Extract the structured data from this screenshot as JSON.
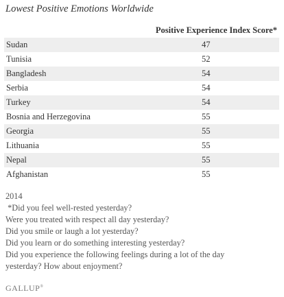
{
  "title": "Lowest Positive Emotions Worldwide",
  "column_header": "Positive Experience Index Score*",
  "rows": [
    {
      "country": "Sudan",
      "score": "47"
    },
    {
      "country": "Tunisia",
      "score": "52"
    },
    {
      "country": "Bangladesh",
      "score": "54"
    },
    {
      "country": "Serbia",
      "score": "54"
    },
    {
      "country": "Turkey",
      "score": "54"
    },
    {
      "country": "Bosnia and Herzegovina",
      "score": "55"
    },
    {
      "country": "Georgia",
      "score": "55"
    },
    {
      "country": "Lithuania",
      "score": "55"
    },
    {
      "country": "Nepal",
      "score": "55"
    },
    {
      "country": "Afghanistan",
      "score": "55"
    }
  ],
  "notes": [
    "2014",
    " *Did you feel well-rested yesterday?",
    "Were you treated with respect all day yesterday?",
    "Did you smile or laugh a lot yesterday?",
    "Did you learn or do something interesting yesterday?",
    "Did you experience the following feelings during a lot of the day",
    "yesterday? How about enjoyment?"
  ],
  "logo": "GALLUP",
  "logo_mark": "®"
}
